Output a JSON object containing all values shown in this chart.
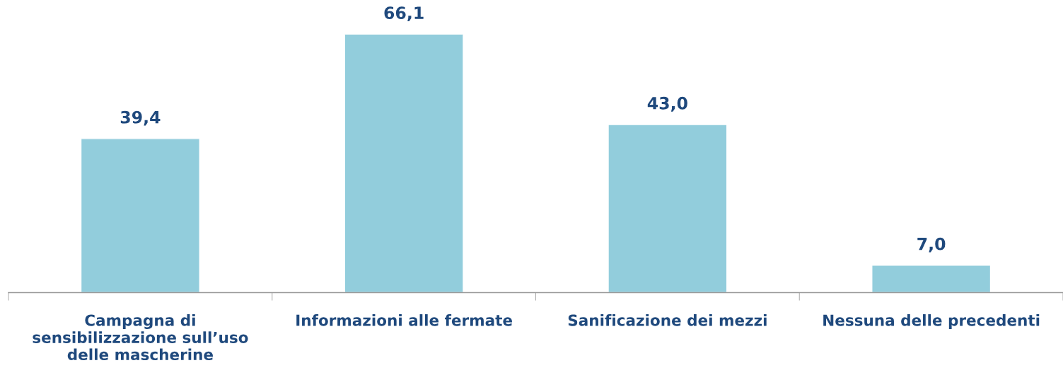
{
  "chart_data": {
    "type": "bar",
    "categories": [
      "Campagna di sensibilizzazione sull’uso delle mascherine",
      "Informazioni alle fermate",
      "Sanificazione dei mezzi",
      "Nessuna delle precedenti"
    ],
    "values": [
      39.4,
      66.1,
      43.0,
      7.0
    ],
    "value_labels": [
      "39,4",
      "66,1",
      "43,0",
      "7,0"
    ],
    "color": "#92cddc",
    "grid": false,
    "legend": false
  }
}
